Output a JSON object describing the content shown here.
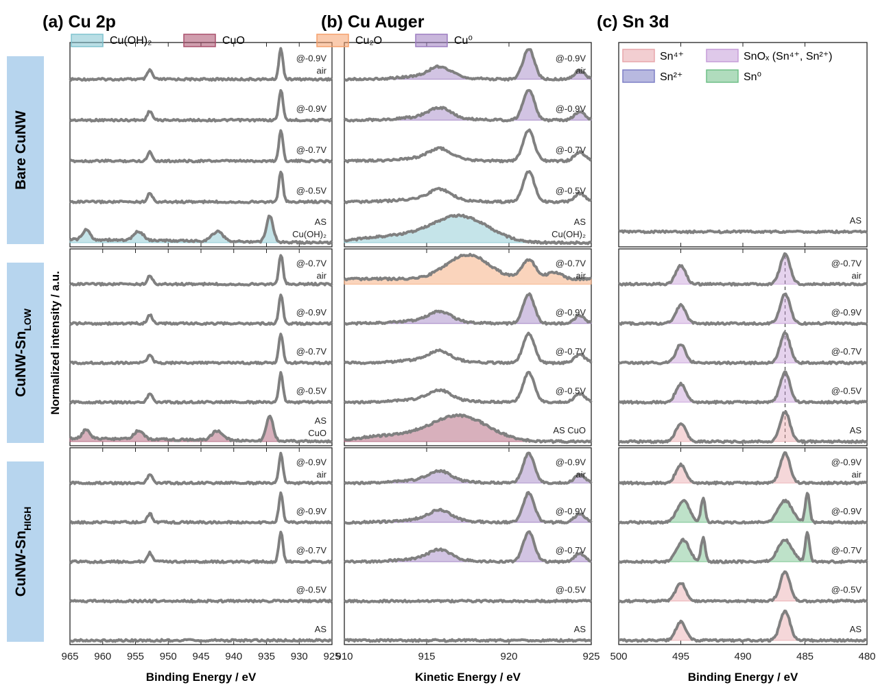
{
  "colors": {
    "CuOH2": "#7fc3cf",
    "CuO": "#a94f6b",
    "Cu2O": "#f5a06b",
    "Cu0": "#9c7cc0",
    "Sn4": "#e8a6ab",
    "Sn2": "#7d7fc6",
    "SnOx": "#c59cd8",
    "Sn0": "#6fbf87",
    "data": "#808080",
    "rowband": "#b7d5ee"
  },
  "figure": {
    "ylabel": "Normalized intensity  /  a.u.",
    "rows": [
      {
        "name": "Bare CuNW"
      },
      {
        "name": "CuNW-Sn",
        "sub": "LOW"
      },
      {
        "name": "CuNW-Sn",
        "sub": "HIGH"
      }
    ],
    "legend_a": [
      {
        "key": "CuOH2",
        "text": "Cu(OH)₂"
      },
      {
        "key": "CuO",
        "text": "CuO"
      },
      {
        "key": "Cu2O",
        "text": "Cu₂O"
      },
      {
        "key": "Cu0",
        "text": "Cu⁰"
      }
    ],
    "legend_c": [
      {
        "key": "Sn4",
        "text": "Sn⁴⁺"
      },
      {
        "key": "SnOx",
        "text": "SnOₓ (Sn⁴⁺, Sn²⁺)"
      },
      {
        "key": "Sn2",
        "text": "Sn²⁺"
      },
      {
        "key": "Sn0",
        "text": "Sn⁰"
      }
    ]
  },
  "chart_data": [
    {
      "type": "line",
      "title": "(a) Cu 2p",
      "xlabel": "Binding Energy / eV",
      "xlim": [
        965,
        925
      ],
      "xticks": [
        965,
        960,
        955,
        950,
        945,
        940,
        935,
        930,
        925
      ],
      "peaks_eV": [
        952.8,
        932.8
      ],
      "blocks": [
        {
          "row": "Bare CuNW",
          "spectra": [
            {
              "label": "@-0.9V",
              "label2": "air",
              "shape": "metal"
            },
            {
              "label": "@-0.9V",
              "shape": "metal"
            },
            {
              "label": "@-0.7V",
              "shape": "metal"
            },
            {
              "label": "@-0.5V",
              "shape": "metal"
            },
            {
              "label": "AS",
              "label2": "Cu(OH)₂",
              "shape": "oxide",
              "fit": "CuOH2"
            }
          ]
        },
        {
          "row": "CuNW-Sn LOW",
          "spectra": [
            {
              "label": "@-0.7V",
              "label2": "air",
              "shape": "metal"
            },
            {
              "label": "@-0.9V",
              "shape": "metal"
            },
            {
              "label": "@-0.7V",
              "shape": "metal"
            },
            {
              "label": "@-0.5V",
              "shape": "metal"
            },
            {
              "label": "AS",
              "label2": "CuO",
              "shape": "oxide",
              "fit": "CuO"
            }
          ]
        },
        {
          "row": "CuNW-Sn HIGH",
          "spectra": [
            {
              "label": "@-0.9V",
              "label2": "air",
              "shape": "metal"
            },
            {
              "label": "@-0.9V",
              "shape": "metal"
            },
            {
              "label": "@-0.7V",
              "shape": "metal"
            },
            {
              "label": "@-0.5V",
              "shape": "flat"
            },
            {
              "label": "AS",
              "shape": "flat"
            }
          ]
        }
      ]
    },
    {
      "type": "line",
      "title": "(b) Cu Auger",
      "xlabel": "Kinetic Energy / eV",
      "xlim": [
        910,
        925
      ],
      "xticks": [
        910,
        915,
        920,
        925
      ],
      "peaks_eV": [
        918.6,
        921.2
      ],
      "blocks": [
        {
          "row": "Bare CuNW",
          "spectra": [
            {
              "label": "@-0.9V",
              "label2": "air",
              "shape": "metal",
              "fit": "Cu0"
            },
            {
              "label": "@-0.9V",
              "shape": "metal",
              "fit": "Cu0"
            },
            {
              "label": "@-0.7V",
              "shape": "metal"
            },
            {
              "label": "@-0.5V",
              "shape": "metal"
            },
            {
              "label": "AS",
              "label2": "Cu(OH)₂",
              "shape": "oxide",
              "fit": "CuOH2"
            }
          ]
        },
        {
          "row": "CuNW-Sn LOW",
          "spectra": [
            {
              "label": "@-0.7V",
              "label2": "air",
              "shape": "mixed",
              "fit": "Cu2O"
            },
            {
              "label": "@-0.9V",
              "shape": "metal",
              "fit": "Cu0"
            },
            {
              "label": "@-0.7V",
              "shape": "metal"
            },
            {
              "label": "@-0.5V",
              "shape": "metal"
            },
            {
              "label": "AS CuO",
              "shape": "oxide",
              "fit": "CuO"
            }
          ]
        },
        {
          "row": "CuNW-Sn HIGH",
          "spectra": [
            {
              "label": "@-0.9V",
              "label2": "air",
              "shape": "metal",
              "fit": "Cu0"
            },
            {
              "label": "@-0.9V",
              "shape": "metal",
              "fit": "Cu0"
            },
            {
              "label": "@-0.7V",
              "shape": "metal",
              "fit": "Cu0"
            },
            {
              "label": "@-0.5V",
              "shape": "flat"
            },
            {
              "label": "AS",
              "shape": "flat"
            }
          ]
        }
      ]
    },
    {
      "type": "line",
      "title": "(c) Sn 3d",
      "xlabel": "Binding Energy / eV",
      "xlim": [
        500,
        480
      ],
      "xticks": [
        500,
        495,
        490,
        485,
        480
      ],
      "peaks_eV": [
        495.0,
        486.6
      ],
      "reference_line_eV": 486.6,
      "blocks": [
        {
          "row": "Bare CuNW",
          "spectra": [
            {
              "label": "AS",
              "shape": "flat"
            }
          ]
        },
        {
          "row": "CuNW-Sn LOW",
          "spectra": [
            {
              "label": "@-0.7V",
              "label2": "air",
              "shape": "sn",
              "fit": "SnOx"
            },
            {
              "label": "@-0.9V",
              "shape": "sn",
              "fit": "SnOx"
            },
            {
              "label": "@-0.7V",
              "shape": "sn",
              "fit": "SnOx"
            },
            {
              "label": "@-0.5V",
              "shape": "sn",
              "fit": "SnOx"
            },
            {
              "label": "AS",
              "shape": "sn",
              "fit": "Sn4"
            }
          ]
        },
        {
          "row": "CuNW-Sn HIGH",
          "spectra": [
            {
              "label": "@-0.9V",
              "label2": "air",
              "shape": "sn",
              "fit": "Sn4"
            },
            {
              "label": "@-0.9V",
              "shape": "snmetal",
              "fit": "Sn0"
            },
            {
              "label": "@-0.7V",
              "shape": "snmetal",
              "fit": "Sn0"
            },
            {
              "label": "@-0.5V",
              "shape": "sn",
              "fit": "Sn4"
            },
            {
              "label": "AS",
              "shape": "sn",
              "fit": "Sn4"
            }
          ]
        }
      ]
    }
  ]
}
